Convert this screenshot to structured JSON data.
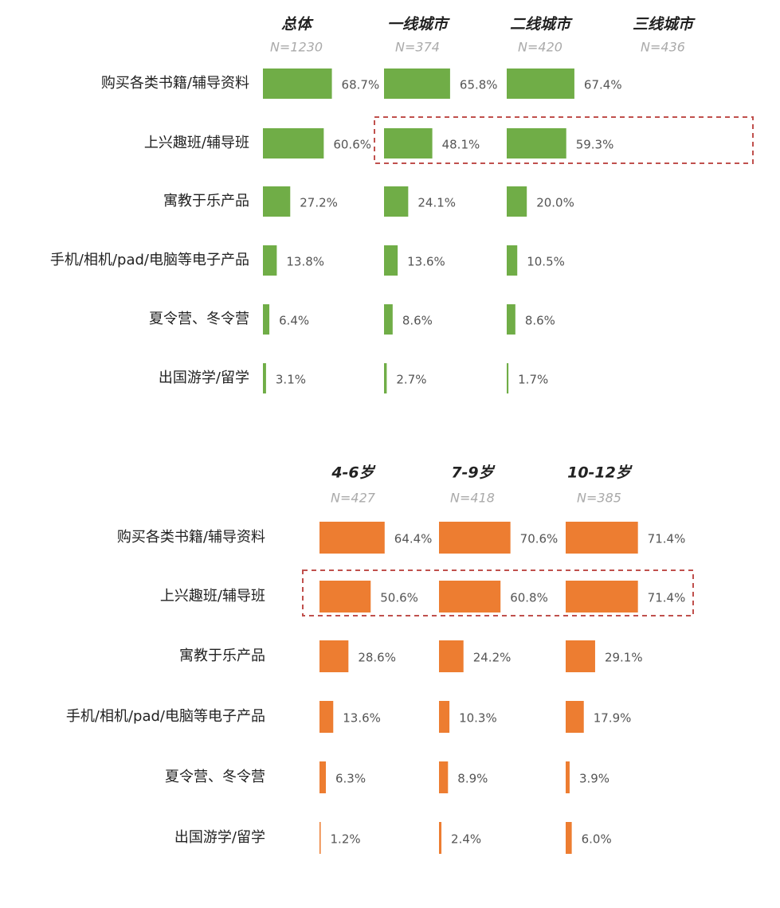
{
  "chart_data": [
    {
      "type": "bar",
      "categories": [
        "购买各类书籍/辅导资料",
        "上兴趣班/辅导班",
        "寓教于乐产品",
        "手机/相机/pad/电脑等电子产品",
        "夏令营、冬令营",
        "出国游学/留学"
      ],
      "series": [
        {
          "name": "总体",
          "n_label": "N=1230",
          "color": "#70ad47",
          "values": [
            68.7,
            60.6,
            27.2,
            13.8,
            6.4,
            3.1
          ],
          "value_labels": [
            "68.7%",
            "60.6%",
            "27.2%",
            "13.8%",
            "6.4%",
            "3.1%"
          ]
        },
        {
          "name": "一线城市",
          "n_label": "N=374",
          "color": "#70ad47",
          "values": [
            65.8,
            48.1,
            24.1,
            13.6,
            8.6,
            2.7
          ],
          "value_labels": [
            "65.8%",
            "48.1%",
            "24.1%",
            "13.6%",
            "8.6%",
            "2.7%"
          ]
        },
        {
          "name": "二线城市",
          "n_label": "N=420",
          "color": "#70ad47",
          "values": [
            67.4,
            59.3,
            20.0,
            10.5,
            8.6,
            1.7
          ],
          "value_labels": [
            "67.4%",
            "59.3%",
            "20.0%",
            "10.5%",
            "8.6%",
            "1.7%"
          ]
        },
        {
          "name": "三线城市",
          "n_label": "N=436",
          "color": "#70ad47",
          "values": [
            null,
            null,
            null,
            null,
            null,
            null
          ],
          "value_labels": [
            null,
            null,
            null,
            null,
            null,
            null
          ]
        }
      ]
    },
    {
      "type": "bar",
      "categories": [
        "购买各类书籍/辅导资料",
        "上兴趣班/辅导班",
        "寓教于乐产品",
        "手机/相机/pad/电脑等电子产品",
        "夏令营、冬令营",
        "出国游学/留学"
      ],
      "series": [
        {
          "name": "4-6岁",
          "n_label": "N=427",
          "color": "#ed7d31",
          "values": [
            64.4,
            50.6,
            28.6,
            13.6,
            6.3,
            1.2
          ],
          "value_labels": [
            "64.4%",
            "50.6%",
            "28.6%",
            "13.6%",
            "6.3%",
            "1.2%"
          ]
        },
        {
          "name": "7-9岁",
          "n_label": "N=418",
          "color": "#ed7d31",
          "values": [
            70.6,
            60.8,
            24.2,
            10.3,
            8.9,
            2.4
          ],
          "value_labels": [
            "70.6%",
            "60.8%",
            "24.2%",
            "10.3%",
            "8.9%",
            "2.4%"
          ]
        },
        {
          "name": "10-12岁",
          "n_label": "N=385",
          "color": "#ed7d31",
          "values": [
            71.4,
            71.4,
            29.1,
            17.9,
            3.9,
            6.0
          ],
          "value_labels": [
            "71.4%",
            "71.4%",
            "29.1%",
            "17.9%",
            "3.9%",
            "6.0%"
          ]
        }
      ]
    }
  ]
}
